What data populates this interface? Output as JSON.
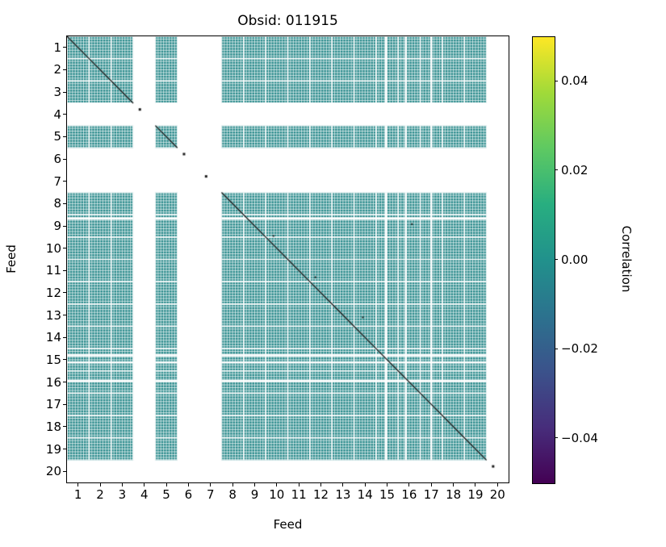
{
  "chart_data": {
    "type": "heatmap",
    "title": "Obsid: 011915",
    "xlabel": "Feed",
    "ylabel": "Feed",
    "n_feeds": 20,
    "x_ticks": [
      "1",
      "2",
      "3",
      "4",
      "5",
      "6",
      "7",
      "8",
      "9",
      "10",
      "11",
      "12",
      "13",
      "14",
      "15",
      "16",
      "17",
      "18",
      "19",
      "20"
    ],
    "y_ticks": [
      "1",
      "2",
      "3",
      "4",
      "5",
      "6",
      "7",
      "8",
      "9",
      "10",
      "11",
      "12",
      "13",
      "14",
      "15",
      "16",
      "17",
      "18",
      "19",
      "20"
    ],
    "present_feeds": [
      1,
      2,
      3,
      5,
      8,
      9,
      10,
      11,
      12,
      13,
      14,
      15,
      16,
      17,
      18,
      19
    ],
    "missing_feeds": [
      4,
      6,
      7,
      20
    ],
    "off_diagonal_value": 0.0,
    "fill_color": "#27898a",
    "diagonal_color": "#1c1c1c",
    "subcells_per_feed": 8,
    "extra_gap_rows": [
      8.17,
      14.3,
      14.62,
      15.45
    ],
    "extra_gap_cols": [
      14.45,
      15.35,
      16.5
    ],
    "specks": [
      [
        11.25,
        10.8
      ],
      [
        15.62,
        8.42
      ],
      [
        9.35,
        8.95
      ],
      [
        13.4,
        12.6
      ]
    ],
    "colorbar": {
      "label": "Correlation",
      "tick_labels": [
        "0.04",
        "0.02",
        "0.00",
        "−0.02",
        "−0.04"
      ],
      "tick_values": [
        0.04,
        0.02,
        0.0,
        -0.02,
        -0.04
      ],
      "clim": [
        -0.05,
        0.05
      ],
      "colors": [
        "#fde725",
        "#a0da39",
        "#5ec962",
        "#28ae80",
        "#21918c",
        "#2c728e",
        "#3b528b",
        "#472d7b",
        "#440154"
      ]
    },
    "background": "#ffffff"
  }
}
